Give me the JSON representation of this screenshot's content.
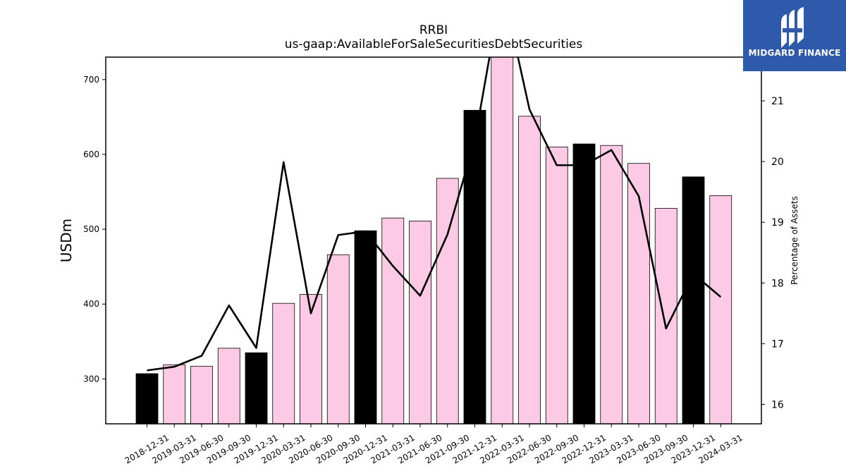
{
  "chart_data": {
    "type": "bar",
    "title": "RRBI",
    "subtitle": "us-gaap:AvailableForSaleSecuritiesDebtSecurities",
    "ylabel": "USDm",
    "y2label": "Percentage of Assets",
    "ylim": [
      240,
      730
    ],
    "y2lim": [
      15.68,
      21.72
    ],
    "yticks": [
      300,
      400,
      500,
      600,
      700
    ],
    "y2ticks": [
      16,
      17,
      18,
      19,
      20,
      21
    ],
    "categories": [
      "2018-12-31",
      "2019-03-31",
      "2019-06-30",
      "2019-09-30",
      "2019-12-31",
      "2020-03-31",
      "2020-06-30",
      "2020-09-30",
      "2020-12-31",
      "2021-03-31",
      "2021-06-30",
      "2021-09-30",
      "2021-12-31",
      "2022-03-31",
      "2022-06-30",
      "2022-09-30",
      "2022-12-31",
      "2023-03-31",
      "2023-06-30",
      "2023-09-30",
      "2023-12-31",
      "2024-03-31"
    ],
    "series": [
      {
        "kind": "bar",
        "values": [
          307,
          319,
          317,
          341,
          335,
          401,
          413,
          466,
          498,
          515,
          511,
          568,
          659,
          735,
          651,
          610,
          614,
          612,
          588,
          528,
          570,
          545
        ],
        "colors": [
          "#000000",
          "#fccae4",
          "#fccae4",
          "#fccae4",
          "#000000",
          "#fccae4",
          "#fccae4",
          "#fccae4",
          "#000000",
          "#fccae4",
          "#fccae4",
          "#fccae4",
          "#000000",
          "#fccae4",
          "#fccae4",
          "#fccae4",
          "#000000",
          "#fccae4",
          "#fccae4",
          "#fccae4",
          "#000000",
          "#fccae4"
        ]
      },
      {
        "kind": "line",
        "axis": "right",
        "color": "#000000",
        "values": [
          16.56,
          16.62,
          16.8,
          17.63,
          16.93,
          19.99,
          17.5,
          18.79,
          18.85,
          18.28,
          17.79,
          18.8,
          20.35,
          22.9,
          20.86,
          19.94,
          19.94,
          20.19,
          19.43,
          17.25,
          18.15,
          17.77
        ]
      }
    ]
  },
  "logo": {
    "text": "MIDGARD FINANCE",
    "bg": "#2f5aab"
  }
}
